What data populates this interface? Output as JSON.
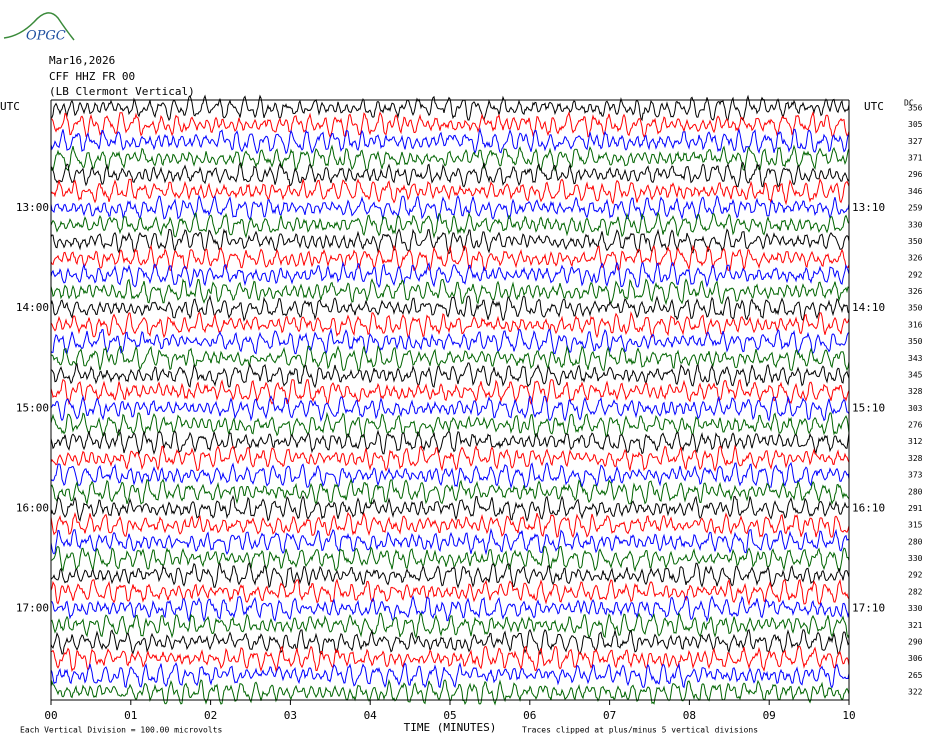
{
  "logo": "OPGC",
  "header": {
    "date": "Mar16,2026",
    "station": "CFF HHZ FR 00",
    "location": "(LB  Clermont Vertical)"
  },
  "chart_data": {
    "type": "helicorder",
    "x_label": "TIME (MINUTES)",
    "xlim": [
      0,
      10
    ],
    "xticks": [
      {
        "value": 0,
        "label": "00"
      },
      {
        "value": 1,
        "label": "01"
      },
      {
        "value": 2,
        "label": "02"
      },
      {
        "value": 3,
        "label": "03"
      },
      {
        "value": 4,
        "label": "04"
      },
      {
        "value": 5,
        "label": "05"
      },
      {
        "value": 6,
        "label": "06"
      },
      {
        "value": 7,
        "label": "07"
      },
      {
        "value": 8,
        "label": "08"
      },
      {
        "value": 9,
        "label": "09"
      },
      10
    ],
    "left_axis_label": "UTC",
    "right_axis_label": "UTC",
    "dc_label": "DC",
    "left_labels": [
      null,
      null,
      null,
      null,
      null,
      null,
      "13:00",
      null,
      null,
      null,
      null,
      null,
      "14:00",
      null,
      null,
      null,
      null,
      null,
      "15:00",
      null,
      null,
      null,
      null,
      null,
      "16:00",
      null,
      null,
      null,
      null,
      null,
      "17:00",
      null,
      null,
      null,
      null,
      null
    ],
    "right_labels": [
      null,
      null,
      null,
      null,
      null,
      null,
      "13:10",
      null,
      null,
      null,
      null,
      null,
      "14:10",
      null,
      null,
      null,
      null,
      null,
      "15:10",
      null,
      null,
      null,
      null,
      null,
      "16:10",
      null,
      null,
      null,
      null,
      null,
      "17:10",
      null,
      null,
      null,
      null,
      null
    ],
    "dc_values": [
      356,
      305,
      327,
      371,
      296,
      346,
      259,
      330,
      350,
      326,
      292,
      326,
      350,
      316,
      350,
      343,
      345,
      328,
      303,
      276,
      312,
      328,
      373,
      280,
      291,
      315,
      280,
      330,
      292,
      282,
      330,
      321,
      290,
      306,
      265,
      322
    ],
    "trace_colors": [
      "#000000",
      "#ff0000",
      "#0000ff",
      "#006400"
    ],
    "footer_left": "Each Vertical Division =  100.00 microvolts",
    "footer_right": "Traces clipped at plus/minus 5 vertical divisions"
  }
}
